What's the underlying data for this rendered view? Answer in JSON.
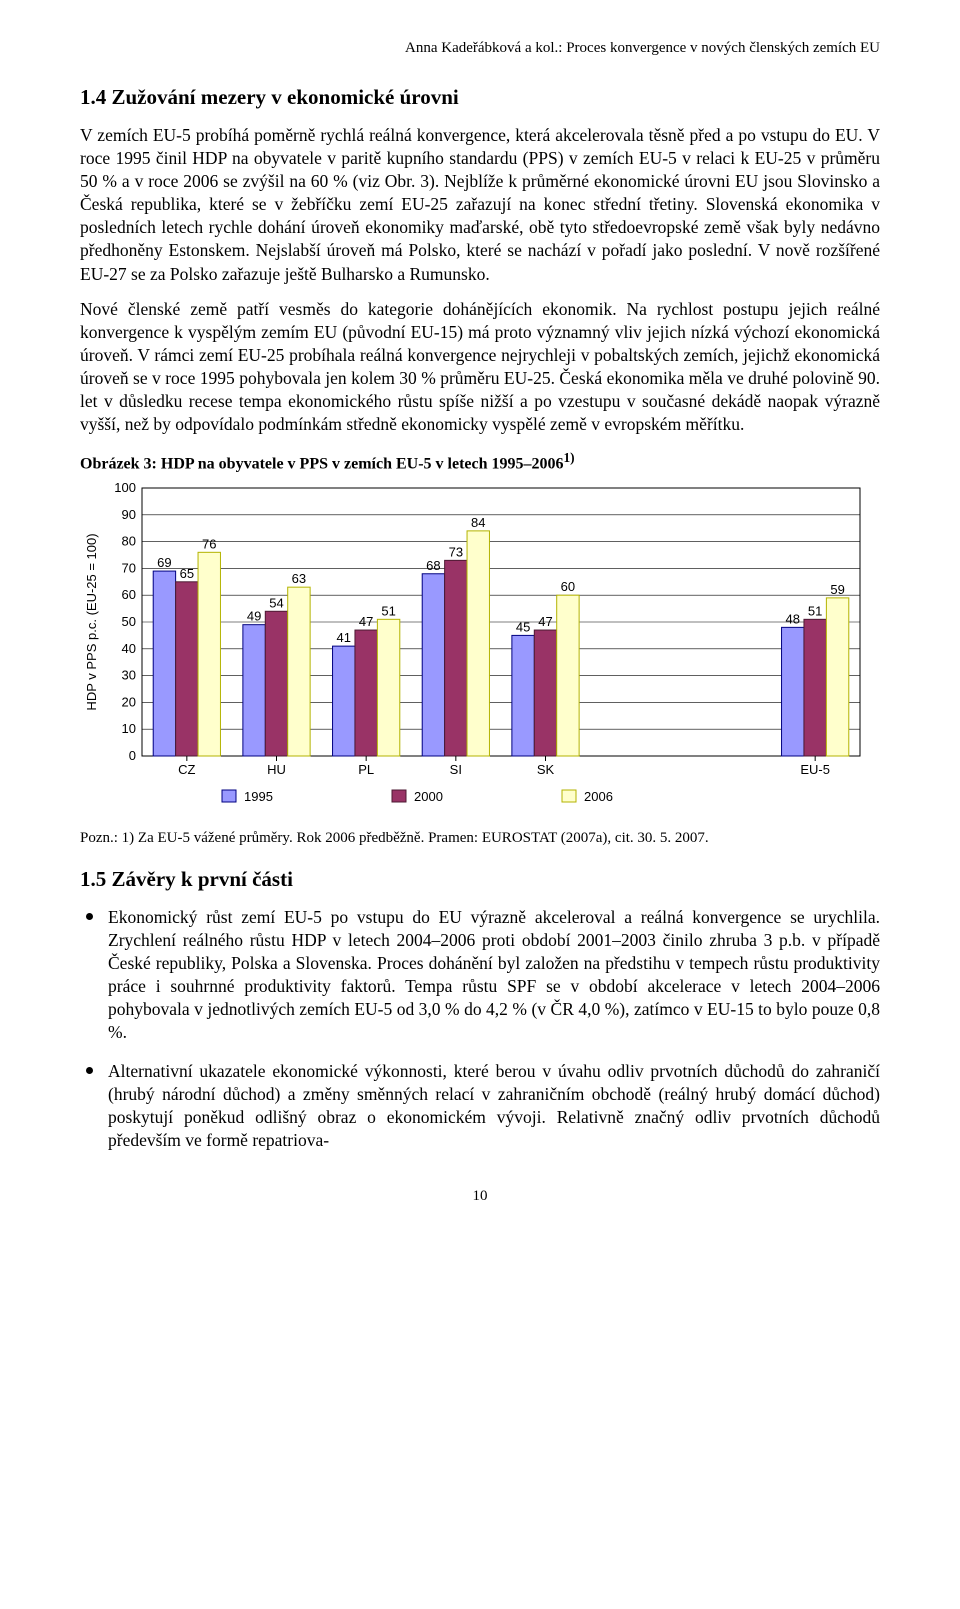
{
  "running_head": "Anna Kadeřábková a kol.: Proces konvergence v nových členských zemích EU",
  "section_1_4_title": "1.4 Zužování mezery v ekonomické úrovni",
  "para1": "V zemích EU-5 probíhá poměrně rychlá reálná konvergence, která akcelerovala těsně před a po vstupu do EU. V roce 1995 činil HDP na obyvatele v paritě kupního standardu (PPS) v zemích EU-5 v relaci k EU-25 v průměru 50 % a v roce 2006 se zvýšil na 60 % (viz Obr. 3). Nejblíže k průměrné ekonomické úrovni EU jsou Slovinsko a Česká republika, které se v žebříčku zemí EU-25 zařazují na konec střední třetiny. Slovenská ekonomika v posledních letech rychle dohání úroveň ekonomiky maďarské, obě tyto středoevropské země však byly nedávno předhoněny Estonskem. Nejslabší úroveň má Polsko, které se nachází v pořadí jako poslední. V nově rozšířené EU-27 se za Polsko zařazuje ještě Bulharsko a Rumunsko.",
  "para2": "Nové členské země patří vesměs do kategorie dohánějících ekonomik. Na rychlost postupu jejich reálné konvergence k vyspělým zemím EU (původní EU-15) má proto významný vliv jejich nízká výchozí ekonomická úroveň. V rámci zemí EU-25 probíhala reálná konvergence nejrychleji v pobaltských zemích, jejichž ekonomická úroveň se v roce 1995 pohybovala jen kolem 30 % průměru EU-25. Česká ekonomika měla ve druhé polovině 90. let v důsledku recese tempa ekonomického růstu spíše nižší a po vzestupu v současné dekádě naopak výrazně vyšší, než by odpovídalo podmínkám středně ekonomicky vyspělé země v evropském měřítku.",
  "figure3": {
    "caption_prefix": "Obrázek 3: HDP na obyvatele v PPS v zemích EU-5 v letech 1995–2006",
    "caption_sup": "1)",
    "type": "grouped-bar",
    "y_axis_label": "HDP v PPS p.c. (EU-25 = 100)",
    "ylim": [
      0,
      100
    ],
    "ytick_step": 10,
    "categories": [
      "CZ",
      "HU",
      "PL",
      "SI",
      "SK",
      "EU-5"
    ],
    "series": [
      {
        "name": "1995",
        "color": "#9999ff",
        "border": "#000080",
        "values": [
          69,
          49,
          41,
          68,
          45,
          48
        ]
      },
      {
        "name": "2000",
        "color": "#993366",
        "border": "#4d1a33",
        "values": [
          65,
          54,
          47,
          73,
          47,
          51
        ]
      },
      {
        "name": "2006",
        "color": "#ffffcc",
        "border": "#b3b300",
        "values": [
          76,
          63,
          51,
          84,
          60,
          59
        ]
      }
    ],
    "category_gap_after": [
      0,
      0,
      0,
      0,
      180,
      0
    ],
    "axis_color": "#000000",
    "grid_color": "#000000",
    "grid_width": 0.6,
    "background_color": "#ffffff",
    "label_fontsize": 13,
    "tick_fontsize": 13,
    "bar_label_fontsize": 13,
    "bar_group_width": 0.75,
    "figure_width": 790,
    "figure_height": 300
  },
  "figure3_note": "Pozn.: 1) Za EU-5 vážené průměry. Rok 2006 předběžně. Pramen: EUROSTAT (2007a), cit. 30. 5. 2007.",
  "section_1_5_title": "1.5 Závěry k první části",
  "bullet1": "Ekonomický růst zemí EU-5 po vstupu do EU výrazně akceleroval a reálná konvergence se urychlila. Zrychlení reálného růstu HDP v letech 2004–2006 proti období 2001–2003 činilo zhruba 3 p.b. v případě České republiky, Polska a Slovenska. Proces dohánění byl založen na předstihu v tempech růstu produktivity práce i souhrnné produktivity faktorů. Tempa růstu SPF se v období akcelerace v letech 2004–2006 pohybovala v jednotlivých zemích EU-5 od 3,0 % do 4,2 % (v ČR 4,0 %), zatímco v EU-15 to bylo pouze 0,8 %.",
  "bullet2": "Alternativní ukazatele ekonomické výkonnosti, které berou v úvahu odliv prvotních důchodů do zahraničí (hrubý národní důchod) a změny směnných relací v zahraničním obchodě (reálný hrubý domácí důchod) poskytují poněkud odlišný obraz o ekonomickém vývoji. Relativně značný odliv prvotních důchodů především ve formě repatriova-",
  "page_number": "10"
}
